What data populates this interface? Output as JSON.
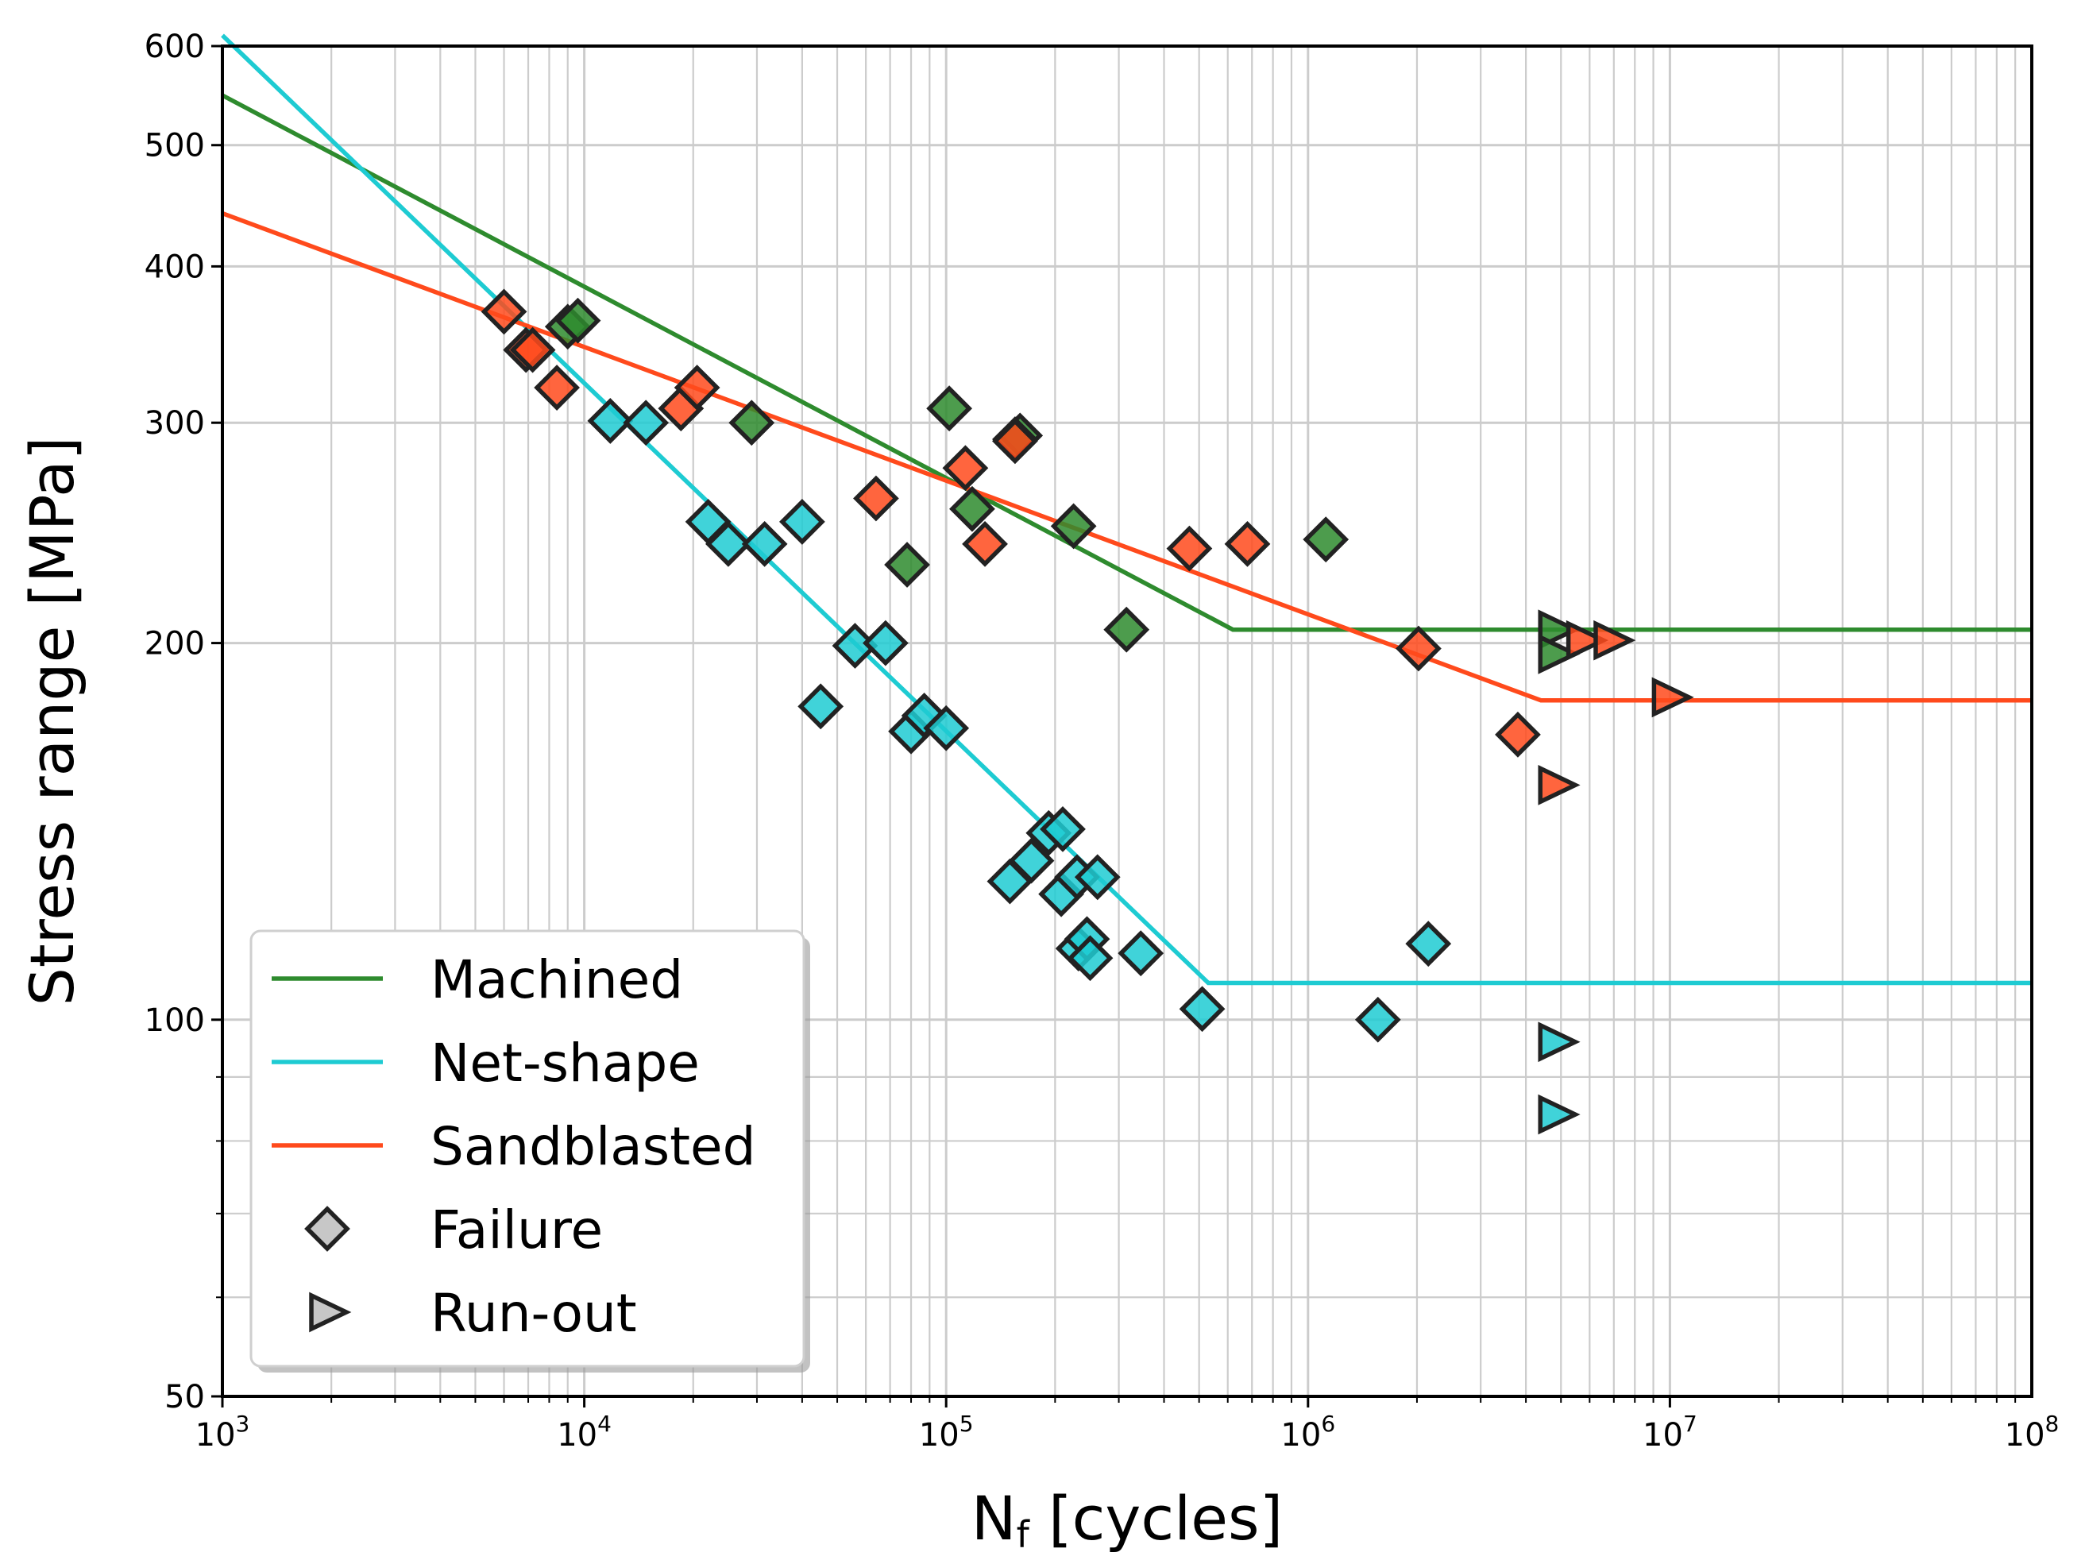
{
  "chart_data": {
    "type": "scatter",
    "title": "",
    "xlabel_main": "N",
    "xlabel_sub": "f",
    "xlabel_rest": " [cycles]",
    "ylabel": "Stress range [MPa]",
    "xscale": "log",
    "yscale": "log",
    "xlim": [
      1000,
      100000000
    ],
    "ylim": [
      50,
      600
    ],
    "grid": true,
    "legend_position": "lower-left",
    "x_ticks": [
      {
        "value": 1000,
        "base": "10",
        "exp": "3"
      },
      {
        "value": 10000,
        "base": "10",
        "exp": "4"
      },
      {
        "value": 100000,
        "base": "10",
        "exp": "5"
      },
      {
        "value": 1000000,
        "base": "10",
        "exp": "6"
      },
      {
        "value": 10000000,
        "base": "10",
        "exp": "7"
      },
      {
        "value": 100000000,
        "base": "10",
        "exp": "8"
      }
    ],
    "y_ticks": [
      {
        "value": 50,
        "label": "50"
      },
      {
        "value": 100,
        "label": "100"
      },
      {
        "value": 200,
        "label": "200"
      },
      {
        "value": 300,
        "label": "300"
      },
      {
        "value": 400,
        "label": "400"
      },
      {
        "value": 500,
        "label": "500"
      },
      {
        "value": 600,
        "label": "600"
      }
    ],
    "y_minor_ticks": [
      60,
      70,
      80,
      90
    ],
    "series": [
      {
        "name": "Machined",
        "color": "#2e8b2e",
        "fit_line": [
          [
            1000,
            548
          ],
          [
            620000,
            205
          ],
          [
            100000000,
            205
          ]
        ],
        "failures": [
          [
            9000,
            358
          ],
          [
            9600,
            362
          ],
          [
            29000,
            300
          ],
          [
            102000,
            308
          ],
          [
            118000,
            256
          ],
          [
            160000,
            293
          ],
          [
            78000,
            231
          ],
          [
            225000,
            248
          ],
          [
            315000,
            205
          ],
          [
            1120000,
            242
          ],
          [
            155000,
            291
          ]
        ],
        "runouts": [
          [
            4850000,
            205
          ],
          [
            4850000,
            196
          ]
        ]
      },
      {
        "name": "Net-shape",
        "color": "#1ecbd2",
        "fit_line": [
          [
            1000,
            612
          ],
          [
            530000,
            107
          ],
          [
            100000000,
            107
          ]
        ],
        "failures": [
          [
            11800,
            301
          ],
          [
            14800,
            300
          ],
          [
            22000,
            250
          ],
          [
            25000,
            240
          ],
          [
            31500,
            240
          ],
          [
            40000,
            250
          ],
          [
            45000,
            178
          ],
          [
            56000,
            199
          ],
          [
            68000,
            200
          ],
          [
            80000,
            170
          ],
          [
            87000,
            175
          ],
          [
            100000,
            171
          ],
          [
            150000,
            129
          ],
          [
            172000,
            134
          ],
          [
            192000,
            141
          ],
          [
            208000,
            126
          ],
          [
            210000,
            142
          ],
          [
            230000,
            130
          ],
          [
            262000,
            130
          ],
          [
            232000,
            114
          ],
          [
            245000,
            116
          ],
          [
            250000,
            112
          ],
          [
            345000,
            113
          ],
          [
            510000,
            102
          ],
          [
            1560000,
            100
          ],
          [
            2150000,
            115
          ]
        ],
        "runouts": [
          [
            4850000,
            96
          ],
          [
            4850000,
            84
          ]
        ]
      },
      {
        "name": "Sandblasted",
        "color": "#ff4a1c",
        "fit_line": [
          [
            1000,
            441
          ],
          [
            4400000,
            180
          ],
          [
            100000000,
            180
          ]
        ],
        "failures": [
          [
            6000,
            368
          ],
          [
            6900,
            343
          ],
          [
            7200,
            343
          ],
          [
            8400,
            320
          ],
          [
            18500,
            308
          ],
          [
            20500,
            320
          ],
          [
            64000,
            261
          ],
          [
            113000,
            276
          ],
          [
            128000,
            240
          ],
          [
            155000,
            290
          ],
          [
            470000,
            238
          ],
          [
            680000,
            240
          ],
          [
            2020000,
            198
          ],
          [
            3800000,
            169
          ]
        ],
        "runouts": [
          [
            5800000,
            201
          ],
          [
            6900000,
            201
          ],
          [
            4850000,
            154
          ],
          [
            10000000,
            181
          ]
        ]
      }
    ],
    "legend": [
      {
        "label": "Machined",
        "kind": "line",
        "color": "#2e8b2e"
      },
      {
        "label": "Net-shape",
        "kind": "line",
        "color": "#1ecbd2"
      },
      {
        "label": "Sandblasted",
        "kind": "line",
        "color": "#ff4a1c"
      },
      {
        "label": "Failure",
        "kind": "diamond",
        "color": "#bdbdbd"
      },
      {
        "label": "Run-out",
        "kind": "triangle",
        "color": "#bdbdbd"
      }
    ]
  }
}
